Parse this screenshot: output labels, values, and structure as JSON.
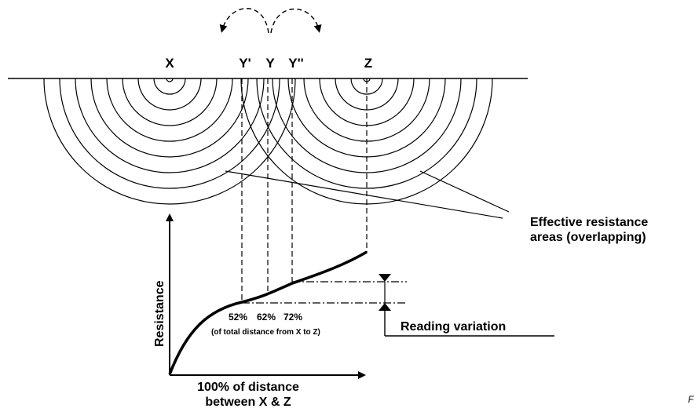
{
  "points": {
    "x": "X",
    "y_prime": "Y'",
    "y": "Y",
    "y_double_prime": "Y''",
    "z": "Z"
  },
  "labels": {
    "effective_line1": "Effective resistance",
    "effective_line2": "areas (overlapping)",
    "reading_variation": "Reading variation",
    "resistance_axis": "Resistance",
    "distance_line1": "100% of distance",
    "distance_line2": "between X & Z",
    "pct_52": "52%",
    "pct_62": "62%",
    "pct_72": "72%",
    "pct_note": "(of total distance from X to Z)",
    "figure_fragment": "F"
  },
  "hemispheres": {
    "x_electrode_rings": 8,
    "z_electrode_rings": 8
  },
  "probe_positions_percent": [
    52,
    62,
    72
  ]
}
